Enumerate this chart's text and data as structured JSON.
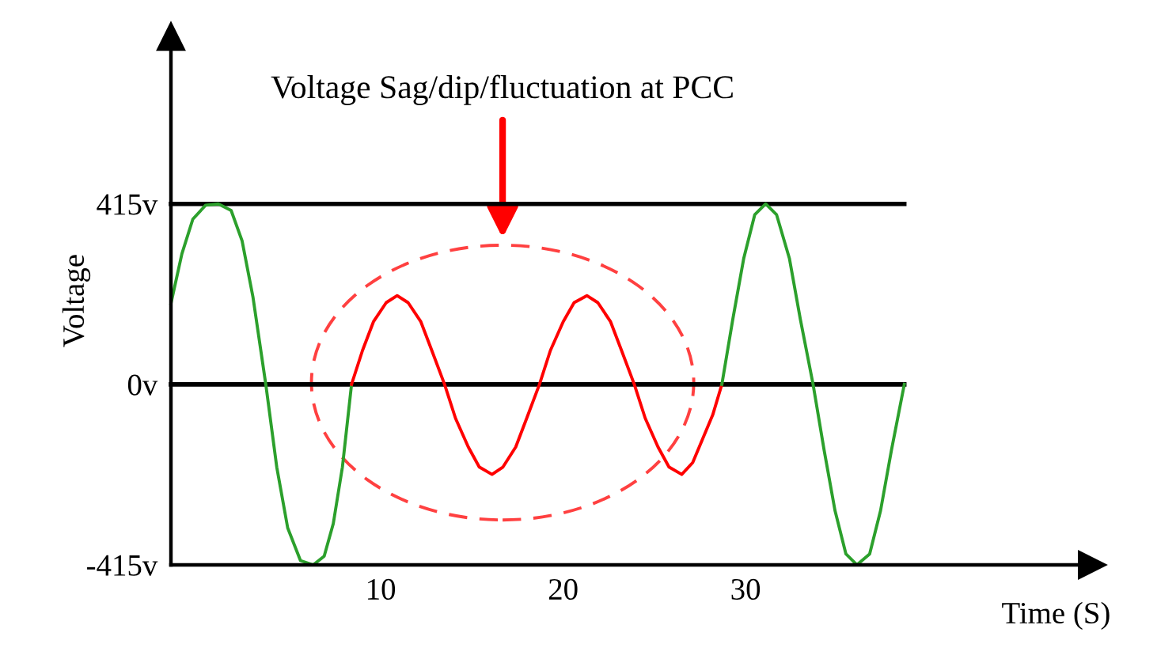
{
  "chart_data": {
    "type": "line",
    "xlabel": "Time (S)",
    "ylabel": "Voltage",
    "xlim": [
      -1.5,
      49
    ],
    "ylim": [
      -415,
      800
    ],
    "xticks": [
      10,
      20,
      30
    ],
    "yticks": [
      {
        "value": 415,
        "label": "415v"
      },
      {
        "value": 0,
        "label": "0v"
      },
      {
        "value": -415,
        "label": "-415v"
      }
    ],
    "grid": false,
    "legend": false,
    "annotations": [
      "Voltage Sag/dip/fluctuation at PCC"
    ],
    "series": [
      {
        "color": "#000000",
        "x": [
          -1.5,
          38.7
        ],
        "values": [
          415,
          415
        ]
      },
      {
        "color": "#000000",
        "x": [
          -1.5,
          38.7
        ],
        "values": [
          0,
          0
        ]
      },
      {
        "color": "#2ca02c",
        "x": [
          -1.5,
          -0.9,
          -0.3,
          0.4,
          1.1,
          1.8,
          2.4,
          3.0,
          3.7,
          4.3,
          4.9,
          5.6,
          6.3,
          6.9,
          7.4,
          7.9,
          8.4
        ],
        "values": [
          186,
          300,
          380,
          412,
          415,
          400,
          330,
          200,
          0,
          -190,
          -330,
          -405,
          -415,
          -395,
          -320,
          -190,
          0
        ]
      },
      {
        "color": "#ff0000",
        "x": [
          8.4,
          9.0,
          9.6,
          10.3,
          10.9,
          11.5,
          12.2,
          12.8,
          13.5,
          14.1,
          14.8,
          15.4,
          16.1,
          16.7,
          17.4,
          18.0,
          18.7,
          19.3,
          20.0,
          20.6,
          21.3,
          21.9,
          22.6,
          23.2,
          23.9,
          24.5,
          25.2,
          25.8,
          26.5,
          27.1,
          27.6,
          28.2,
          28.7
        ],
        "values": [
          0,
          78,
          144,
          188,
          204,
          188,
          144,
          78,
          0,
          -78,
          -144,
          -190,
          -207,
          -190,
          -144,
          -78,
          0,
          78,
          144,
          188,
          204,
          188,
          144,
          78,
          0,
          -78,
          -144,
          -190,
          -207,
          -180,
          -130,
          -70,
          0
        ]
      },
      {
        "color": "#2ca02c",
        "x": [
          28.7,
          29.3,
          29.9,
          30.5,
          31.1,
          31.7,
          32.4,
          33.0,
          33.7,
          34.3,
          34.9,
          35.5,
          36.1,
          36.8,
          37.4,
          38.0,
          38.7
        ],
        "values": [
          0,
          150,
          290,
          390,
          415,
          390,
          290,
          150,
          0,
          -150,
          -290,
          -390,
          -415,
          -390,
          -290,
          -150,
          0
        ]
      }
    ]
  }
}
